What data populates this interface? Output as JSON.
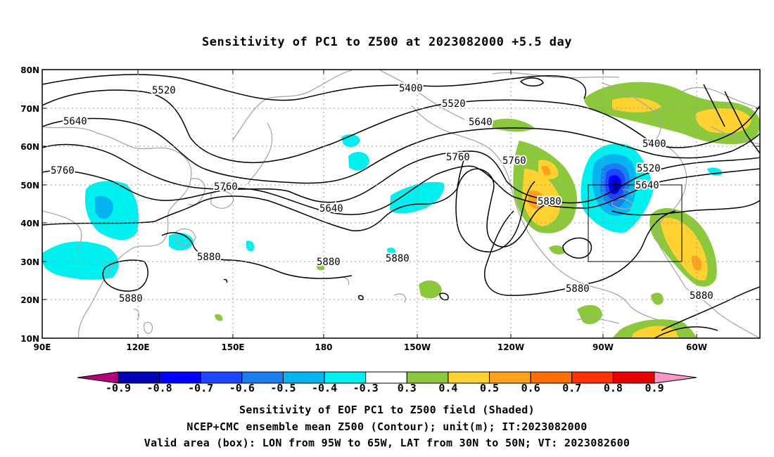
{
  "title": "Sensitivity of PC1 to Z500 at 2023082000 +5.5 day",
  "lat_labels": [
    "80N",
    "70N",
    "60N",
    "50N",
    "40N",
    "30N",
    "20N",
    "10N"
  ],
  "lon_labels": [
    "90E",
    "120E",
    "150E",
    "180",
    "150W",
    "120W",
    "90W",
    "60W"
  ],
  "contour_labels": [
    "5520",
    "5400",
    "5520",
    "5640",
    "5640",
    "5400",
    "5520",
    "5760",
    "5760",
    "5640",
    "5760",
    "5640",
    "5760",
    "5880",
    "5880",
    "5880",
    "5880",
    "5880",
    "5880",
    "5880"
  ],
  "colorbar": {
    "labels": [
      "-0.9",
      "-0.8",
      "-0.7",
      "-0.6",
      "-0.5",
      "-0.4",
      "-0.3",
      "0.3",
      "0.4",
      "0.5",
      "0.6",
      "0.7",
      "0.8",
      "0.9"
    ],
    "colors": [
      "#0000b4",
      "#0000ff",
      "#1e46ff",
      "#1a7df0",
      "#05b4f0",
      "#00f0f0",
      "#ffffff",
      "#8cc83c",
      "#ffd232",
      "#ffa01e",
      "#ff6e00",
      "#ff3200",
      "#e60000"
    ],
    "low_end_color": "#b4007d",
    "high_end_color": "#ff96c8"
  },
  "valid_box": {
    "lon": "95W to 65W",
    "lat": "30N to 50N"
  },
  "footer": {
    "line1": "Sensitivity of EOF PC1 to Z500 field (Shaded)",
    "line2": "NCEP+CMC ensemble mean Z500 (Contour); unit(m); IT:2023082000",
    "line3": "Valid area (box): LON from 95W to 65W, LAT from 30N to 50N; VT: 2023082600"
  }
}
